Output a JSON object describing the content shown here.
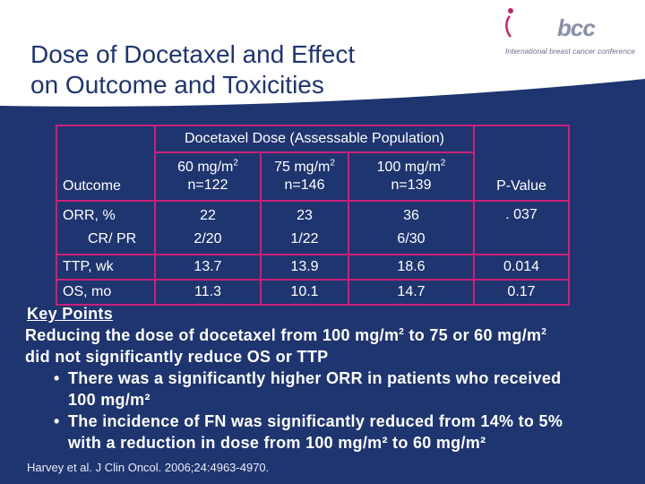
{
  "slide": {
    "title_line1": "Dose of Docetaxel and Effect",
    "title_line2": "on Outcome and  Toxicities",
    "colors": {
      "background": "#1f3570",
      "table_border": "#cc1f7a",
      "text": "#ffffff"
    }
  },
  "logo": {
    "word": "bcc",
    "tagline": "International breast cancer conference",
    "icon": "ibcc-logo-icon"
  },
  "table": {
    "group_header": "Docetaxel Dose (Assessable Population)",
    "headers": {
      "outcome": "Outcome",
      "dose60": {
        "label": "60 mg/m",
        "sup": "2",
        "n": "n=122"
      },
      "dose75": {
        "label": "75 mg/m",
        "sup": "2",
        "n": "n=146"
      },
      "dose100": {
        "label": "100 mg/m",
        "sup": "2",
        "n": "n=139"
      },
      "pvalue": "P-Value"
    },
    "rows": [
      {
        "label": "ORR, %",
        "sublabel": "CR/ PR",
        "d60": "22",
        "d60_sub": "2/20",
        "d75": "23",
        "d75_sub": "1/22",
        "d100": "36",
        "d100_sub": "6/30",
        "p": ". 037"
      },
      {
        "label": "TTP, wk",
        "d60": "13.7",
        "d75": "13.9",
        "d100": "18.6",
        "p": "0.014"
      },
      {
        "label": "OS, mo",
        "d60": "11.3",
        "d75": "10.1",
        "d100": "14.7",
        "p": "0.17"
      }
    ]
  },
  "key_points": {
    "title": "Key Points",
    "para_part1": "Reducing the dose of docetaxel from 100 mg/m",
    "para_sup1": "2",
    "para_part2": " to 75 or 60 mg/m",
    "para_sup2": "2",
    "para_part3": "did not significantly reduce OS or TTP",
    "bullet_char": "•",
    "bullets": [
      {
        "line1": "There was a significantly higher ORR in patients who received",
        "line2": "100 mg/m²"
      },
      {
        "line1": "The incidence of FN was significantly reduced from 14% to 5%",
        "line2": "with a reduction in dose from 100 mg/m² to 60 mg/m²"
      }
    ]
  },
  "citation": "Harvey et al. J Clin Oncol. 2006;24:4963-4970."
}
